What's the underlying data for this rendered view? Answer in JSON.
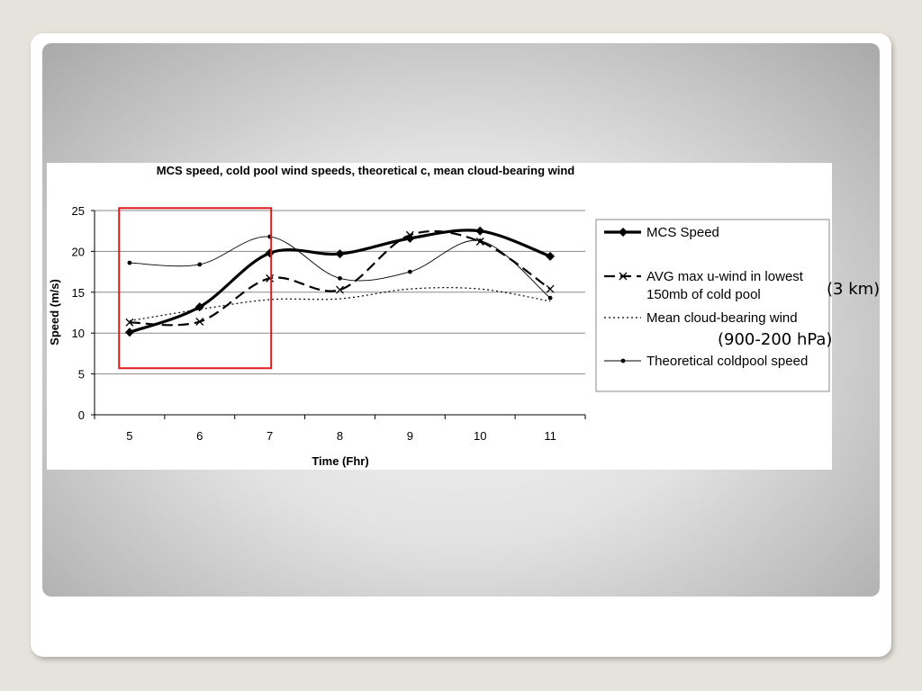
{
  "slide": {
    "annotations": [
      "(3 km)",
      "(900-200 hPa)"
    ]
  },
  "colors": {
    "highlight": "#e0191c",
    "frame": "#ffffff",
    "background": "#e6e3dc"
  },
  "chart_data": {
    "type": "line",
    "title": "MCS speed, cold pool wind speeds, theoretical c, mean cloud-bearing wind",
    "xlabel": "Time (Fhr)",
    "ylabel": "Speed (m/s)",
    "x": [
      5,
      6,
      7,
      8,
      9,
      10,
      11
    ],
    "x_ticks": [
      "5",
      "6",
      "7",
      "8",
      "9",
      "10",
      "11"
    ],
    "y_ticks": [
      "0",
      "5",
      "10",
      "15",
      "20",
      "25"
    ],
    "ylim": [
      0,
      25
    ],
    "grid": "horizontal",
    "legend_position": "right",
    "highlight_region": {
      "x_range": [
        5,
        7
      ],
      "y_range": [
        5.7,
        25.3
      ]
    },
    "series": [
      {
        "name": "MCS Speed",
        "values": [
          10.1,
          13.2,
          19.8,
          19.7,
          21.6,
          22.5,
          19.4
        ],
        "style": "thick-solid",
        "marker": "diamond"
      },
      {
        "name": "AVG max u-wind in lowest 150mb of cold pool",
        "values": [
          11.3,
          11.4,
          16.7,
          15.3,
          22.0,
          21.2,
          15.4
        ],
        "style": "dashed",
        "marker": "x"
      },
      {
        "name": "Mean cloud-bearing wind",
        "values": [
          11.5,
          12.9,
          14.1,
          14.2,
          15.4,
          15.4,
          13.9
        ],
        "style": "dotted",
        "marker": "none"
      },
      {
        "name": "Theoretical coldpool speed",
        "values": [
          18.6,
          18.4,
          21.8,
          16.7,
          17.5,
          21.3,
          14.3
        ],
        "style": "thin-solid",
        "marker": "dot"
      }
    ]
  }
}
